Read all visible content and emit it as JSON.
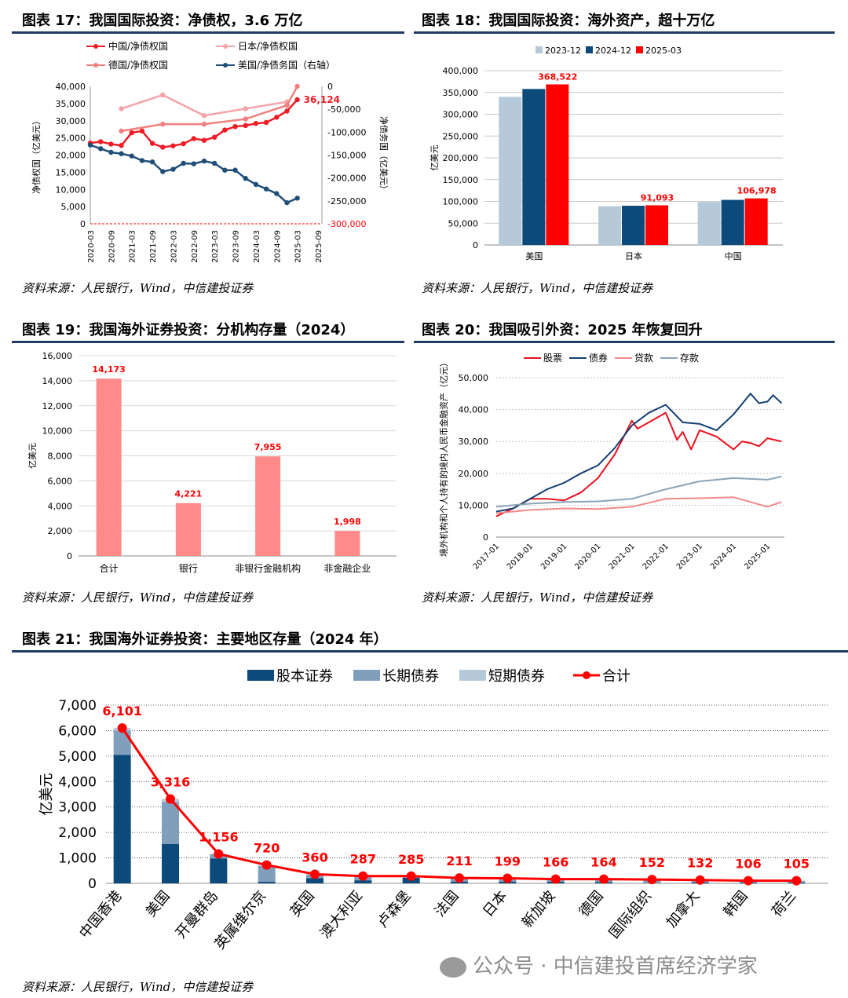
{
  "charts": {
    "c17": {
      "title": "图表 17：我国国际投资：净债权，3.6 万亿",
      "source": "资料来源：人民银行，Wind，中信建投证券"
    },
    "c18": {
      "title": "图表 18：我国国际投资：海外资产，超十万亿",
      "source": "资料来源：人民银行，Wind，中信建投证券"
    },
    "c19": {
      "title": "图表 19：我国海外证券投资：分机构存量（2024）",
      "source": "资料来源：人民银行，Wind，中信建投证券"
    },
    "c20": {
      "title": "图表 20：我国吸引外资：2025 年恢复回升",
      "source": "资料来源：人民银行，Wind，中信建投证券"
    },
    "c21": {
      "title": "图表 21：我国海外证券投资：主要地区存量（2024 年）",
      "source": "资料来源：人民银行，Wind，中信建投证券"
    }
  },
  "watermark": "公众号 · 中信建投首席经济学家",
  "chart_data": [
    {
      "id": "c17",
      "type": "line",
      "ylabel": "净债权国（亿美元）",
      "y2label": "净债务国（亿美元）",
      "ylim": [
        0,
        40000
      ],
      "y2lim": [
        -300000,
        0
      ],
      "x_ticks": [
        "2020-03",
        "2020-09",
        "2021-03",
        "2021-09",
        "2022-03",
        "2022-09",
        "2023-03",
        "2023-09",
        "2024-03",
        "2024-09",
        "2025-03",
        "2025-09"
      ],
      "x_start": "2020-03",
      "end_label": "36,124",
      "series": [
        {
          "name": "中国/净债权国",
          "axis": "left",
          "color": "#ee1c25",
          "marker": true,
          "x": [
            "2020-03",
            "2020-06",
            "2020-09",
            "2020-12",
            "2021-03",
            "2021-06",
            "2021-09",
            "2021-12",
            "2022-03",
            "2022-06",
            "2022-09",
            "2022-12",
            "2023-03",
            "2023-06",
            "2023-09",
            "2023-12",
            "2024-03",
            "2024-06",
            "2024-09",
            "2024-12",
            "2025-03"
          ],
          "values": [
            23500,
            23900,
            23200,
            22800,
            26500,
            27000,
            23400,
            22300,
            22700,
            23300,
            24800,
            24300,
            25200,
            27300,
            28300,
            28600,
            29200,
            29500,
            31000,
            32800,
            36124
          ]
        },
        {
          "name": "日本/净债权国",
          "axis": "left",
          "color": "#f4a3a8",
          "marker": true,
          "x": [
            "2020-12",
            "2021-12",
            "2022-12",
            "2023-12",
            "2024-12"
          ],
          "values": [
            33500,
            37500,
            31500,
            33500,
            35500
          ]
        },
        {
          "name": "德国/净债权国",
          "axis": "left",
          "color": "#f08080",
          "marker": true,
          "x": [
            "2020-12",
            "2021-12",
            "2022-12",
            "2023-12",
            "2024-12",
            "2025-03"
          ],
          "values": [
            27000,
            29000,
            29000,
            30500,
            34500,
            40000
          ]
        },
        {
          "name": "美国/净债务国（右轴）",
          "axis": "right",
          "color": "#1f4e79",
          "marker": true,
          "x": [
            "2020-03",
            "2020-06",
            "2020-09",
            "2020-12",
            "2021-03",
            "2021-06",
            "2021-09",
            "2021-12",
            "2022-03",
            "2022-06",
            "2022-09",
            "2022-12",
            "2023-03",
            "2023-06",
            "2023-09",
            "2023-12",
            "2024-03",
            "2024-06",
            "2024-09",
            "2024-12",
            "2025-03"
          ],
          "values": [
            -128000,
            -136000,
            -144000,
            -147000,
            -152000,
            -162000,
            -165000,
            -186000,
            -181000,
            -168000,
            -169000,
            -163000,
            -168000,
            -183000,
            -183000,
            -201000,
            -214000,
            -224000,
            -234000,
            -254000,
            -244000
          ]
        }
      ]
    },
    {
      "id": "c18",
      "type": "bar",
      "ylabel": "亿美元",
      "ylim": [
        0,
        400000
      ],
      "categories": [
        "美国",
        "日本",
        "中国"
      ],
      "series": [
        {
          "name": "2023-12",
          "color": "#b6c9d8",
          "values": [
            340000,
            89000,
            98500
          ]
        },
        {
          "name": "2024-12",
          "color": "#0b4a7a",
          "values": [
            358000,
            90000,
            103500
          ]
        },
        {
          "name": "2025-03",
          "color": "#ff0000",
          "values": [
            368522,
            91093,
            106978
          ],
          "labels": [
            "368,522",
            "91,093",
            "106,978"
          ]
        }
      ]
    },
    {
      "id": "c19",
      "type": "bar",
      "ylabel": "亿美元",
      "ylim": [
        0,
        16000
      ],
      "categories": [
        "合计",
        "银行",
        "非银行金融机构",
        "非金融企业"
      ],
      "values": [
        14173,
        4221,
        7955,
        1998
      ],
      "labels": [
        "14,173",
        "4,221",
        "7,955",
        "1,998"
      ],
      "color": "#ff8a8a"
    },
    {
      "id": "c20",
      "type": "line",
      "ylabel": "境外机构和个人持有的境内人民币金融资产（亿元）",
      "ylim": [
        0,
        50000
      ],
      "x_ticks": [
        "2017-01",
        "2018-01",
        "2019-01",
        "2020-01",
        "2021-01",
        "2022-01",
        "2023-01",
        "2024-01",
        "2025-01"
      ],
      "series": [
        {
          "name": "股票",
          "color": "#e8101d",
          "x": [
            "2017-01",
            "2017-07",
            "2018-01",
            "2018-07",
            "2019-01",
            "2019-07",
            "2020-01",
            "2020-07",
            "2021-01",
            "2021-03",
            "2021-07",
            "2022-01",
            "2022-05",
            "2022-07",
            "2022-10",
            "2023-01",
            "2023-07",
            "2024-01",
            "2024-04",
            "2024-07",
            "2024-10",
            "2025-01",
            "2025-06"
          ],
          "values": [
            6500,
            9000,
            12000,
            12000,
            11500,
            14000,
            18500,
            26000,
            36500,
            34000,
            36000,
            39000,
            30500,
            33000,
            27500,
            33500,
            31500,
            27500,
            30000,
            29500,
            28500,
            31000,
            30000
          ]
        },
        {
          "name": "债券",
          "color": "#143f73",
          "x": [
            "2017-01",
            "2017-07",
            "2018-01",
            "2018-07",
            "2019-01",
            "2019-07",
            "2020-01",
            "2020-07",
            "2021-01",
            "2021-07",
            "2022-01",
            "2022-07",
            "2023-01",
            "2023-07",
            "2024-01",
            "2024-07",
            "2024-10",
            "2025-01",
            "2025-03",
            "2025-06"
          ],
          "values": [
            8000,
            9000,
            12000,
            15000,
            17000,
            20000,
            22500,
            28000,
            35000,
            39000,
            41500,
            36000,
            35500,
            33500,
            38500,
            45000,
            42000,
            42500,
            44500,
            42000
          ]
        },
        {
          "name": "贷款",
          "color": "#f08a8a",
          "x": [
            "2017-01",
            "2018-01",
            "2019-01",
            "2020-01",
            "2021-01",
            "2022-01",
            "2023-01",
            "2024-01",
            "2025-01",
            "2025-06"
          ],
          "values": [
            7500,
            8500,
            9000,
            8800,
            9500,
            12000,
            12200,
            12500,
            9500,
            11000
          ]
        },
        {
          "name": "存款",
          "color": "#8aa3b8",
          "x": [
            "2017-01",
            "2018-01",
            "2019-01",
            "2020-01",
            "2021-01",
            "2022-01",
            "2023-01",
            "2024-01",
            "2025-01",
            "2025-06"
          ],
          "values": [
            9500,
            10500,
            11000,
            11200,
            12000,
            15000,
            17500,
            18500,
            18000,
            19000
          ]
        }
      ]
    },
    {
      "id": "c21",
      "type": "bar",
      "ylabel": "亿美元",
      "ylim": [
        0,
        7000
      ],
      "categories": [
        "中国香港",
        "美国",
        "开曼群岛",
        "英属维尔京",
        "英国",
        "澳大利亚",
        "卢森堡",
        "法国",
        "日本",
        "新加坡",
        "德国",
        "国际组织",
        "加拿大",
        "韩国",
        "荷兰"
      ],
      "series": [
        {
          "name": "股本证券",
          "color": "#0b4a7a",
          "values": [
            5050,
            1550,
            980,
            60,
            200,
            120,
            220,
            70,
            60,
            60,
            50,
            0,
            40,
            30,
            30
          ]
        },
        {
          "name": "长期债券",
          "color": "#7f9fbc",
          "values": [
            950,
            1650,
            170,
            620,
            140,
            150,
            60,
            120,
            120,
            90,
            100,
            130,
            80,
            60,
            60
          ]
        },
        {
          "name": "短期债券",
          "color": "#b6c9d8",
          "values": [
            101,
            116,
            6,
            40,
            20,
            17,
            5,
            21,
            19,
            16,
            14,
            22,
            12,
            16,
            15
          ]
        },
        {
          "name": "合计",
          "color": "#ff0000",
          "type": "line",
          "values": [
            6101,
            3316,
            1156,
            720,
            360,
            287,
            285,
            211,
            199,
            166,
            164,
            152,
            132,
            106,
            105
          ],
          "labels": [
            "6,101",
            "3,316",
            "1,156",
            "720",
            "360",
            "287",
            "285",
            "211",
            "199",
            "166",
            "164",
            "152",
            "132",
            "106",
            "105"
          ]
        }
      ]
    }
  ]
}
